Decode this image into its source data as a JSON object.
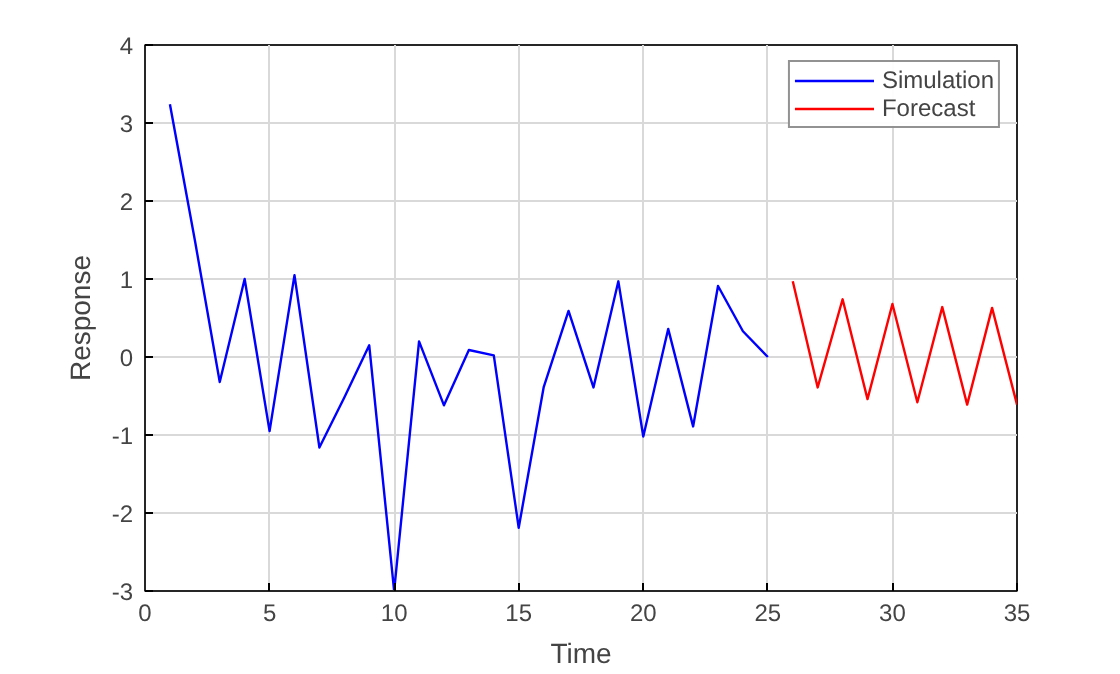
{
  "chart_data": {
    "type": "line",
    "xlabel": "Time",
    "ylabel": "Response",
    "xlim": [
      0,
      35
    ],
    "ylim": [
      -3,
      4
    ],
    "xticks": [
      0,
      5,
      10,
      15,
      20,
      25,
      30,
      35
    ],
    "yticks": [
      -3,
      -2,
      -1,
      0,
      1,
      2,
      3,
      4
    ],
    "grid": true,
    "legend": "top right",
    "marker": "none",
    "line_style": "solid",
    "series": [
      {
        "name": "Simulation",
        "color": "#0000ff",
        "x": [
          1,
          2,
          3,
          4,
          5,
          6,
          7,
          8,
          9,
          10,
          11,
          12,
          13,
          14,
          15,
          16,
          17,
          18,
          19,
          20,
          21,
          22,
          23,
          24,
          25
        ],
        "values": [
          3.24,
          1.5,
          -0.32,
          1.0,
          -0.95,
          1.05,
          -1.16,
          -0.52,
          0.15,
          -3.0,
          0.2,
          -0.62,
          0.09,
          0.02,
          -2.19,
          -0.39,
          0.59,
          -0.39,
          0.97,
          -1.02,
          0.36,
          -0.89,
          0.91,
          0.33,
          0.0
        ]
      },
      {
        "name": "Forecast",
        "color": "#ff0000",
        "x": [
          26,
          27,
          28,
          29,
          30,
          31,
          32,
          33,
          34,
          35
        ],
        "values": [
          0.97,
          -0.39,
          0.74,
          -0.54,
          0.68,
          -0.58,
          0.64,
          -0.61,
          0.63,
          -0.61
        ]
      }
    ]
  }
}
